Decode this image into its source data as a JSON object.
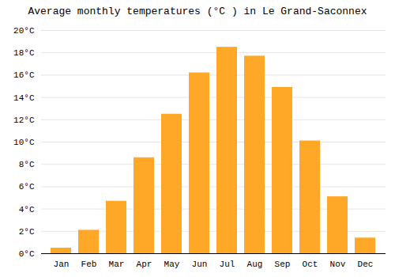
{
  "chart_data": {
    "type": "bar",
    "title": "Average monthly temperatures (°C ) in Le Grand-Saconnex",
    "categories": [
      "Jan",
      "Feb",
      "Mar",
      "Apr",
      "May",
      "Jun",
      "Jul",
      "Aug",
      "Sep",
      "Oct",
      "Nov",
      "Dec"
    ],
    "values": [
      0.5,
      2.1,
      4.7,
      8.6,
      12.5,
      16.2,
      18.5,
      17.7,
      14.9,
      10.1,
      5.1,
      1.4
    ],
    "color": "#FFA726",
    "ylim": [
      0,
      20
    ],
    "yticks": [
      {
        "value": 0,
        "label": "0°C"
      },
      {
        "value": 2,
        "label": "2°C"
      },
      {
        "value": 4,
        "label": "4°C"
      },
      {
        "value": 6,
        "label": "6°C"
      },
      {
        "value": 8,
        "label": "8°C"
      },
      {
        "value": 10,
        "label": "10°C"
      },
      {
        "value": 12,
        "label": "12°C"
      },
      {
        "value": 14,
        "label": "14°C"
      },
      {
        "value": 16,
        "label": "16°C"
      },
      {
        "value": 18,
        "label": "18°C"
      },
      {
        "value": 20,
        "label": "20°C"
      }
    ],
    "grid": true
  }
}
